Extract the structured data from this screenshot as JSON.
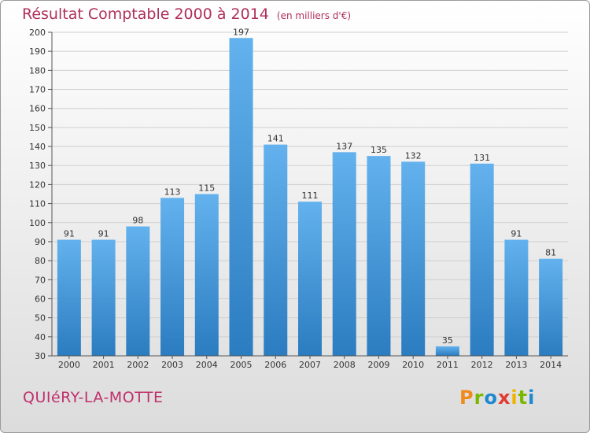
{
  "header": {
    "title": "Résultat Comptable 2000 à 2014",
    "subtitle": "(en milliers d'€)"
  },
  "footer": {
    "commune": "QUIéRY-LA-MOTTE",
    "brand": "Proxiti"
  },
  "colors": {
    "title": "#b0305a",
    "bar_light": "#63b2ee",
    "bar_dark": "#2b7cc0",
    "grid": "#cfcfcf"
  },
  "chart_data": {
    "type": "bar",
    "title": "Résultat Comptable 2000 à 2014",
    "subtitle": "(en milliers d'€)",
    "categories": [
      "2000",
      "2001",
      "2002",
      "2003",
      "2004",
      "2005",
      "2006",
      "2007",
      "2008",
      "2009",
      "2010",
      "2011",
      "2012",
      "2013",
      "2014"
    ],
    "values": [
      91,
      91,
      98,
      113,
      115,
      197,
      141,
      111,
      137,
      135,
      132,
      35,
      131,
      91,
      81
    ],
    "ylim": [
      30,
      200
    ],
    "yticks": [
      30,
      40,
      50,
      60,
      70,
      80,
      90,
      100,
      110,
      120,
      130,
      140,
      150,
      160,
      170,
      180,
      190,
      200
    ],
    "grid": true,
    "data_labels": true
  }
}
